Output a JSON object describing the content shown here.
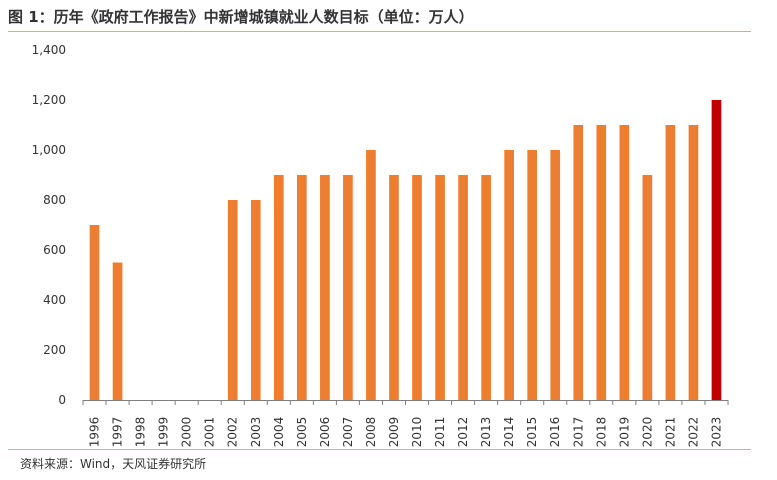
{
  "title": "图 1：历年《政府工作报告》中新增城镇就业人数目标（单位：万人）",
  "source": "资料来源：Wind，天风证券研究所",
  "chart_data": {
    "type": "bar",
    "title": "图 1：历年《政府工作报告》中新增城镇就业人数目标（单位：万人）",
    "unit": "万人",
    "xlabel": "",
    "ylabel": "",
    "ylim": [
      0,
      1400
    ],
    "yticks": [
      0,
      200,
      400,
      600,
      800,
      1000,
      1200,
      1400
    ],
    "ytick_labels": [
      "0",
      "200",
      "400",
      "600",
      "800",
      "1,000",
      "1,200",
      "1,400"
    ],
    "grid": false,
    "legend": "none",
    "categories": [
      "1996",
      "1997",
      "1998",
      "1999",
      "2000",
      "2001",
      "2002",
      "2003",
      "2004",
      "2005",
      "2006",
      "2007",
      "2008",
      "2009",
      "2010",
      "2011",
      "2012",
      "2013",
      "2014",
      "2015",
      "2016",
      "2017",
      "2018",
      "2019",
      "2020",
      "2021",
      "2022",
      "2023"
    ],
    "values": [
      700,
      550,
      null,
      null,
      null,
      null,
      800,
      800,
      900,
      900,
      900,
      900,
      1000,
      900,
      900,
      900,
      900,
      900,
      1000,
      1000,
      1000,
      1100,
      1100,
      1100,
      900,
      1100,
      1100,
      1200
    ],
    "colors": {
      "default": "#ed7d31",
      "highlight": "#c00000"
    },
    "highlight_category": "2023"
  }
}
